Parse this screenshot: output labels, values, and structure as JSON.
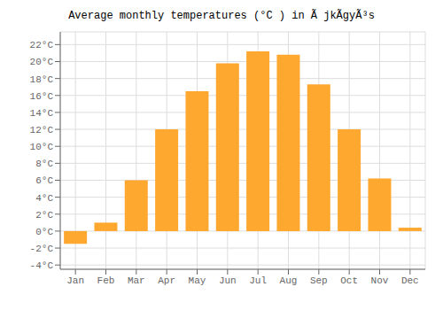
{
  "chart_data": {
    "type": "bar",
    "title": "Average monthly temperatures (°C ) in Ã jkÃ­gyÃ³s",
    "categories": [
      "Jan",
      "Feb",
      "Mar",
      "Apr",
      "May",
      "Jun",
      "Jul",
      "Aug",
      "Sep",
      "Oct",
      "Nov",
      "Dec"
    ],
    "values": [
      -1.5,
      1.0,
      6.0,
      12.0,
      16.5,
      19.8,
      21.2,
      20.8,
      17.3,
      12.0,
      6.2,
      0.4
    ],
    "color": "#FFA830",
    "ylim": [
      -4.5,
      23.5
    ],
    "yticks": [
      {
        "value": -4,
        "label": "-4°C"
      },
      {
        "value": -2,
        "label": "-2°C"
      },
      {
        "value": 0,
        "label": "0°C"
      },
      {
        "value": 2,
        "label": "2°C"
      },
      {
        "value": 4,
        "label": "4°C"
      },
      {
        "value": 6,
        "label": "6°C"
      },
      {
        "value": 8,
        "label": "8°C"
      },
      {
        "value": 10,
        "label": "10°C"
      },
      {
        "value": 12,
        "label": "12°C"
      },
      {
        "value": 14,
        "label": "14°C"
      },
      {
        "value": 16,
        "label": "16°C"
      },
      {
        "value": 18,
        "label": "18°C"
      },
      {
        "value": 20,
        "label": "20°C"
      },
      {
        "value": 22,
        "label": "22°C"
      }
    ],
    "grid": true
  }
}
